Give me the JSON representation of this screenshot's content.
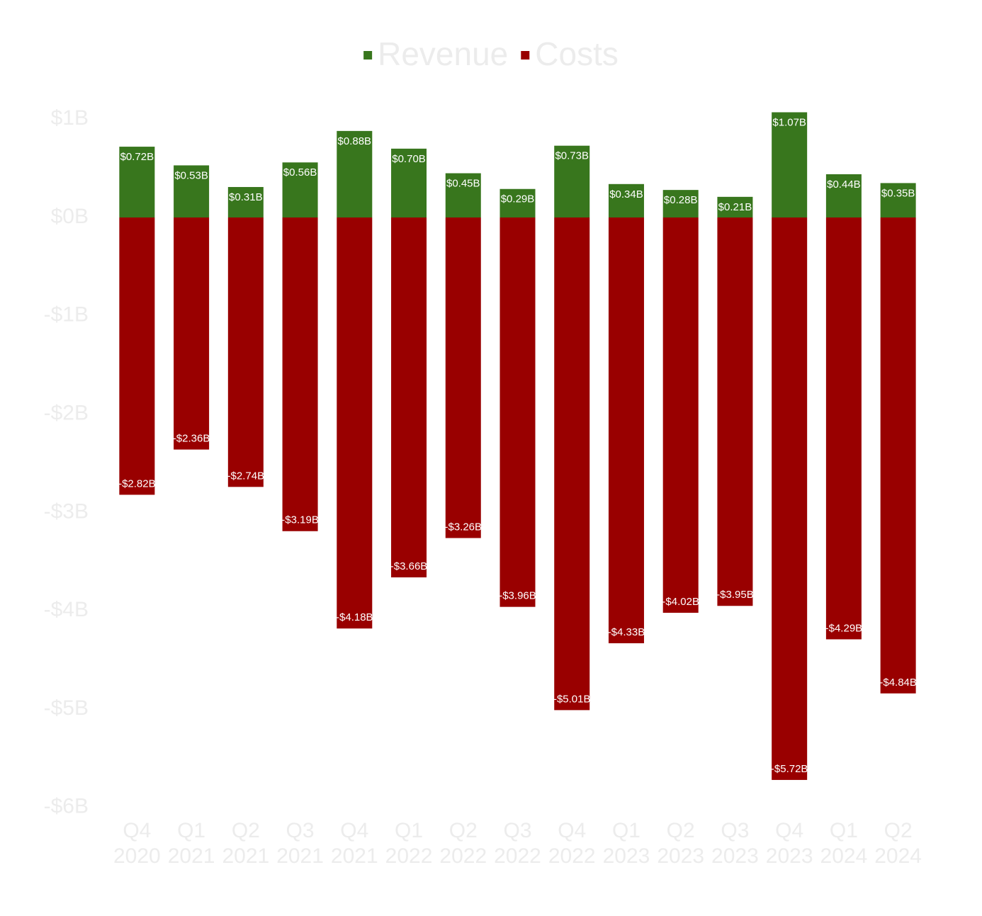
{
  "chart_data": {
    "type": "bar",
    "stacked": true,
    "title": "",
    "xlabel": "",
    "ylabel": "",
    "ylim": [
      -6,
      1
    ],
    "y_unit": "B",
    "y_ticks": [
      1,
      0,
      -1,
      -2,
      -3,
      -4,
      -5,
      -6
    ],
    "y_tick_labels": [
      "$1B",
      "$0B",
      "-$1B",
      "-$2B",
      "-$3B",
      "-$4B",
      "-$5B",
      "-$6B"
    ],
    "categories": [
      [
        "Q4",
        "2020"
      ],
      [
        "Q1",
        "2021"
      ],
      [
        "Q2",
        "2021"
      ],
      [
        "Q3",
        "2021"
      ],
      [
        "Q4",
        "2021"
      ],
      [
        "Q1",
        "2022"
      ],
      [
        "Q2",
        "2022"
      ],
      [
        "Q3",
        "2022"
      ],
      [
        "Q4",
        "2022"
      ],
      [
        "Q1",
        "2023"
      ],
      [
        "Q2",
        "2023"
      ],
      [
        "Q3",
        "2023"
      ],
      [
        "Q4",
        "2023"
      ],
      [
        "Q1",
        "2024"
      ],
      [
        "Q2",
        "2024"
      ]
    ],
    "legend_position": "top-center",
    "series": [
      {
        "name": "Revenue",
        "color": "#38761d",
        "values": [
          0.72,
          0.53,
          0.31,
          0.56,
          0.88,
          0.7,
          0.45,
          0.29,
          0.73,
          0.34,
          0.28,
          0.21,
          1.07,
          0.44,
          0.35
        ],
        "labels": [
          "$0.72B",
          "$0.53B",
          "$0.31B",
          "$0.56B",
          "$0.88B",
          "$0.70B",
          "$0.45B",
          "$0.29B",
          "$0.73B",
          "$0.34B",
          "$0.28B",
          "$0.21B",
          "$1.07B",
          "$0.44B",
          "$0.35B"
        ]
      },
      {
        "name": "Costs",
        "color": "#990000",
        "values": [
          -2.82,
          -2.36,
          -2.74,
          -3.19,
          -4.18,
          -3.66,
          -3.26,
          -3.96,
          -5.01,
          -4.33,
          -4.02,
          -3.95,
          -5.72,
          -4.29,
          -4.84
        ],
        "labels": [
          "-$2.82B",
          "-$2.36B",
          "-$2.74B",
          "-$3.19B",
          "-$4.18B",
          "-$3.66B",
          "-$3.26B",
          "-$3.96B",
          "-$5.01B",
          "-$4.33B",
          "-$4.02B",
          "-$3.95B",
          "-$5.72B",
          "-$4.29B",
          "-$4.84B"
        ]
      }
    ]
  }
}
